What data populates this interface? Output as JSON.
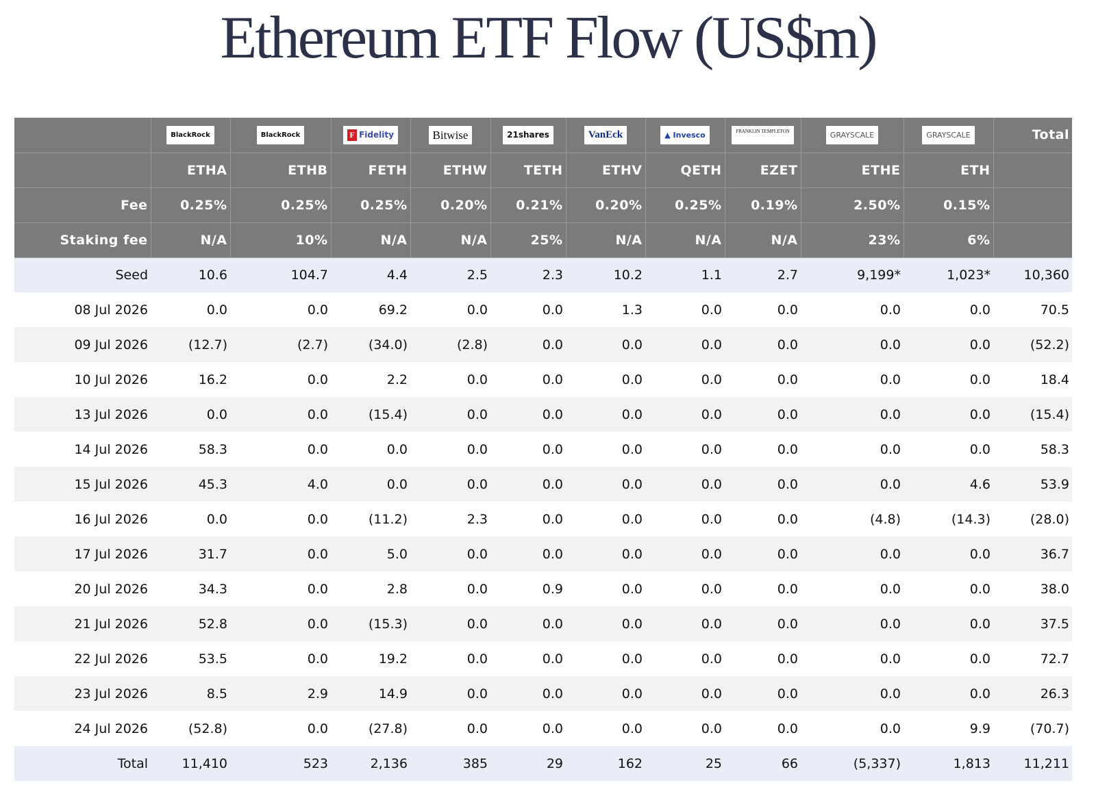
{
  "title": "Ethereum ETF Flow (US$m)",
  "columns": [
    {
      "logo": "BlackRock",
      "logo_icon": "blackrock-logo",
      "ticker": "ETHA",
      "fee": "0.25%",
      "staking_fee": "N/A"
    },
    {
      "logo": "BlackRock",
      "logo_icon": "blackrock-logo",
      "ticker": "ETHB",
      "fee": "0.25%",
      "staking_fee": "10%"
    },
    {
      "logo": "Fidelity",
      "logo_icon": "fidelity-logo",
      "ticker": "FETH",
      "fee": "0.25%",
      "staking_fee": "N/A"
    },
    {
      "logo": "Bitwise",
      "logo_icon": "bitwise-logo",
      "ticker": "ETHW",
      "fee": "0.20%",
      "staking_fee": "N/A"
    },
    {
      "logo": "21shares",
      "logo_icon": "21shares-logo",
      "ticker": "TETH",
      "fee": "0.21%",
      "staking_fee": "25%"
    },
    {
      "logo": "VanEck",
      "logo_icon": "vaneck-logo",
      "ticker": "ETHV",
      "fee": "0.20%",
      "staking_fee": "N/A"
    },
    {
      "logo": "Invesco",
      "logo_icon": "invesco-logo",
      "ticker": "QETH",
      "fee": "0.25%",
      "staking_fee": "N/A"
    },
    {
      "logo": "FRANKLIN TEMPLETON",
      "logo_icon": "franklin-templeton-logo",
      "ticker": "EZET",
      "fee": "0.19%",
      "staking_fee": "N/A"
    },
    {
      "logo": "GRAYSCALE",
      "logo_icon": "grayscale-logo",
      "ticker": "ETHE",
      "fee": "2.50%",
      "staking_fee": "23%"
    },
    {
      "logo": "GRAYSCALE",
      "logo_icon": "grayscale-logo",
      "ticker": "ETH",
      "fee": "0.15%",
      "staking_fee": "6%"
    }
  ],
  "total_header": "Total",
  "fee_label": "Fee",
  "staking_fee_label": "Staking fee",
  "rows": [
    {
      "label": "Seed",
      "values": [
        "10.6",
        "104.7",
        "4.4",
        "2.5",
        "2.3",
        "10.2",
        "1.1",
        "2.7",
        "9,199*",
        "1,023*",
        "10,360"
      ]
    },
    {
      "label": "08 Jul 2026",
      "values": [
        "0.0",
        "0.0",
        "69.2",
        "0.0",
        "0.0",
        "1.3",
        "0.0",
        "0.0",
        "0.0",
        "0.0",
        "70.5"
      ]
    },
    {
      "label": "09 Jul 2026",
      "values": [
        "(12.7)",
        "(2.7)",
        "(34.0)",
        "(2.8)",
        "0.0",
        "0.0",
        "0.0",
        "0.0",
        "0.0",
        "0.0",
        "(52.2)"
      ]
    },
    {
      "label": "10 Jul 2026",
      "values": [
        "16.2",
        "0.0",
        "2.2",
        "0.0",
        "0.0",
        "0.0",
        "0.0",
        "0.0",
        "0.0",
        "0.0",
        "18.4"
      ]
    },
    {
      "label": "13 Jul 2026",
      "values": [
        "0.0",
        "0.0",
        "(15.4)",
        "0.0",
        "0.0",
        "0.0",
        "0.0",
        "0.0",
        "0.0",
        "0.0",
        "(15.4)"
      ]
    },
    {
      "label": "14 Jul 2026",
      "values": [
        "58.3",
        "0.0",
        "0.0",
        "0.0",
        "0.0",
        "0.0",
        "0.0",
        "0.0",
        "0.0",
        "0.0",
        "58.3"
      ]
    },
    {
      "label": "15 Jul 2026",
      "values": [
        "45.3",
        "4.0",
        "0.0",
        "0.0",
        "0.0",
        "0.0",
        "0.0",
        "0.0",
        "0.0",
        "4.6",
        "53.9"
      ]
    },
    {
      "label": "16 Jul 2026",
      "values": [
        "0.0",
        "0.0",
        "(11.2)",
        "2.3",
        "0.0",
        "0.0",
        "0.0",
        "0.0",
        "(4.8)",
        "(14.3)",
        "(28.0)"
      ]
    },
    {
      "label": "17 Jul 2026",
      "values": [
        "31.7",
        "0.0",
        "5.0",
        "0.0",
        "0.0",
        "0.0",
        "0.0",
        "0.0",
        "0.0",
        "0.0",
        "36.7"
      ]
    },
    {
      "label": "20 Jul 2026",
      "values": [
        "34.3",
        "0.0",
        "2.8",
        "0.0",
        "0.9",
        "0.0",
        "0.0",
        "0.0",
        "0.0",
        "0.0",
        "38.0"
      ]
    },
    {
      "label": "21 Jul 2026",
      "values": [
        "52.8",
        "0.0",
        "(15.3)",
        "0.0",
        "0.0",
        "0.0",
        "0.0",
        "0.0",
        "0.0",
        "0.0",
        "37.5"
      ]
    },
    {
      "label": "22 Jul 2026",
      "values": [
        "53.5",
        "0.0",
        "19.2",
        "0.0",
        "0.0",
        "0.0",
        "0.0",
        "0.0",
        "0.0",
        "0.0",
        "72.7"
      ]
    },
    {
      "label": "23 Jul 2026",
      "values": [
        "8.5",
        "2.9",
        "14.9",
        "0.0",
        "0.0",
        "0.0",
        "0.0",
        "0.0",
        "0.0",
        "0.0",
        "26.3"
      ]
    },
    {
      "label": "24 Jul 2026",
      "values": [
        "(52.8)",
        "0.0",
        "(27.8)",
        "0.0",
        "0.0",
        "0.0",
        "0.0",
        "0.0",
        "0.0",
        "9.9",
        "(70.7)"
      ]
    },
    {
      "label": "Total",
      "values": [
        "11,410",
        "523",
        "2,136",
        "385",
        "29",
        "162",
        "25",
        "66",
        "(5,337)",
        "1,813",
        "11,211"
      ]
    }
  ],
  "colors": {
    "header_bg": "#7b7b7b",
    "negative": "#e23a2c",
    "zero": "#bbbbbb",
    "highlight_row": "#e8edf7",
    "stripe": "#f2f2f2",
    "title": "#2c3048"
  }
}
